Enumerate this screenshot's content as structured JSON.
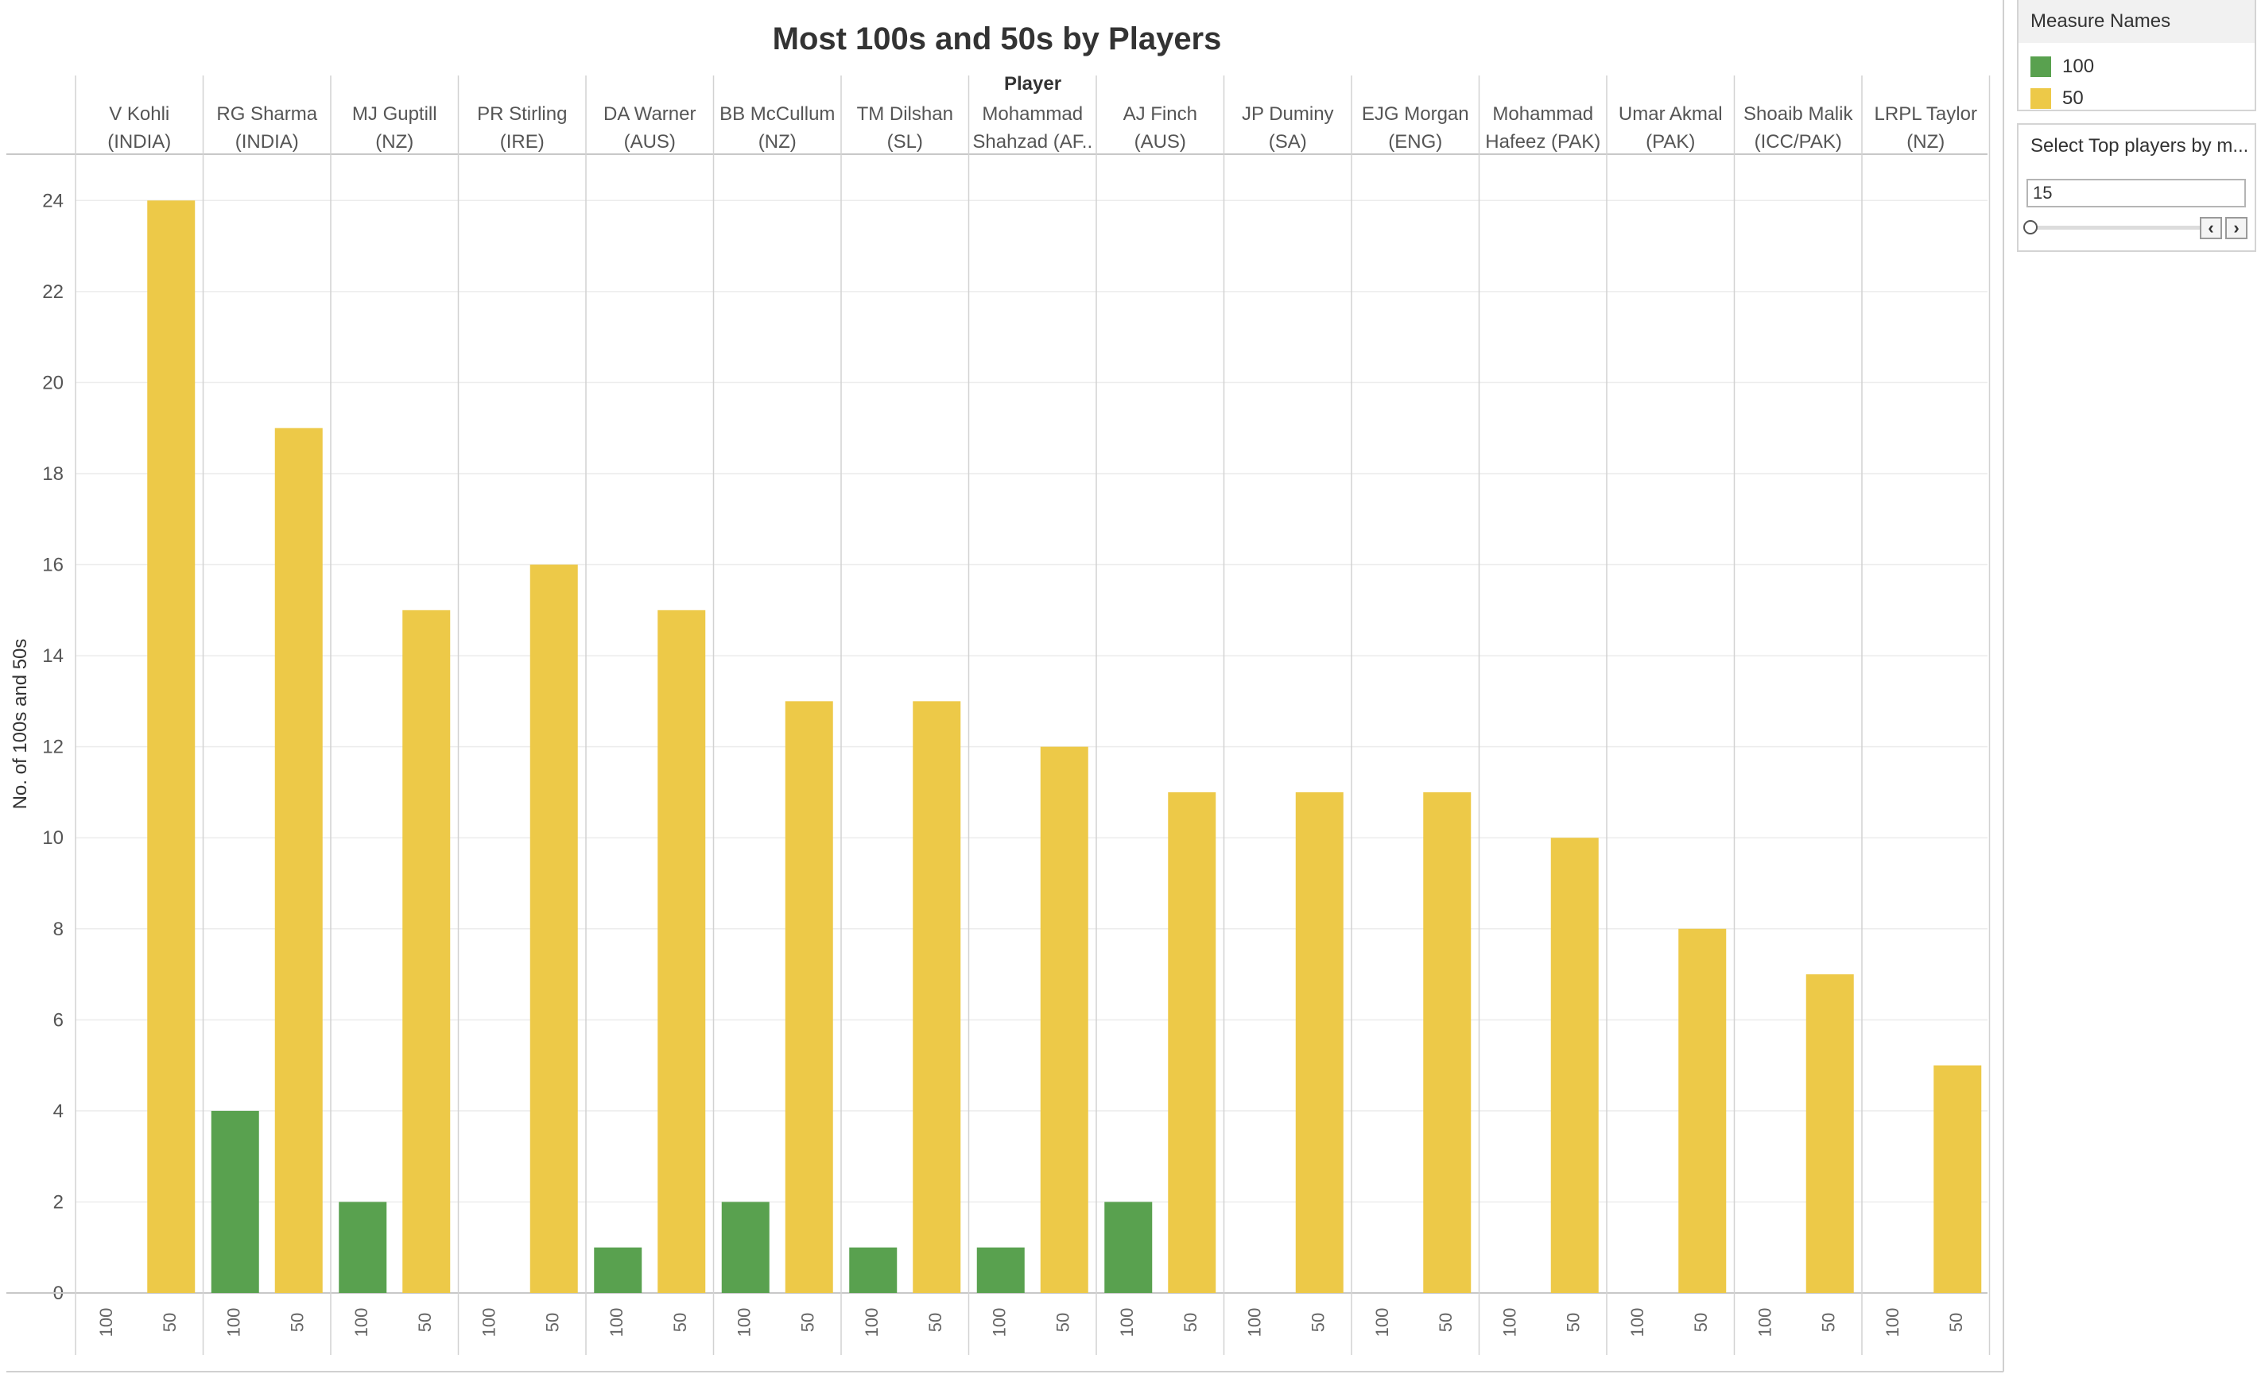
{
  "chart_data": {
    "type": "bar",
    "title": "Most 100s and 50s by Players",
    "column_header": "Player",
    "ylabel": "No. of 100s and 50s",
    "ylim": [
      0,
      25
    ],
    "yticks": [
      0,
      2,
      4,
      6,
      8,
      10,
      12,
      14,
      16,
      18,
      20,
      22,
      24
    ],
    "categories": [
      [
        "V Kohli",
        "(INDIA)"
      ],
      [
        "RG Sharma",
        "(INDIA)"
      ],
      [
        "MJ Guptill",
        "(NZ)"
      ],
      [
        "PR Stirling",
        "(IRE)"
      ],
      [
        "DA Warner",
        "(AUS)"
      ],
      [
        "BB McCullum",
        "(NZ)"
      ],
      [
        "TM Dilshan",
        "(SL)"
      ],
      [
        "Mohammad",
        "Shahzad (AF.."
      ],
      [
        "AJ Finch",
        "(AUS)"
      ],
      [
        "JP Duminy",
        "(SA)"
      ],
      [
        "EJG Morgan",
        "(ENG)"
      ],
      [
        "Mohammad",
        "Hafeez (PAK)"
      ],
      [
        "Umar Akmal",
        "(PAK)"
      ],
      [
        "Shoaib Malik",
        "(ICC/PAK)"
      ],
      [
        "LRPL Taylor",
        "(NZ)"
      ]
    ],
    "series": [
      {
        "name": "100",
        "color": "#59a14f",
        "values": [
          0,
          4,
          2,
          0,
          1,
          2,
          1,
          1,
          2,
          0,
          0,
          0,
          0,
          0,
          0
        ]
      },
      {
        "name": "50",
        "color": "#edc948",
        "values": [
          24,
          19,
          15,
          16,
          15,
          13,
          13,
          12,
          11,
          11,
          11,
          10,
          8,
          7,
          5
        ]
      }
    ],
    "legend_placement": "right",
    "grid": true
  },
  "legend": {
    "title": "Measure Names",
    "items": [
      {
        "label": "100",
        "color": "#59a14f"
      },
      {
        "label": "50",
        "color": "#edc948"
      }
    ]
  },
  "parameter": {
    "title": "Select Top players by m...",
    "value": "15"
  }
}
